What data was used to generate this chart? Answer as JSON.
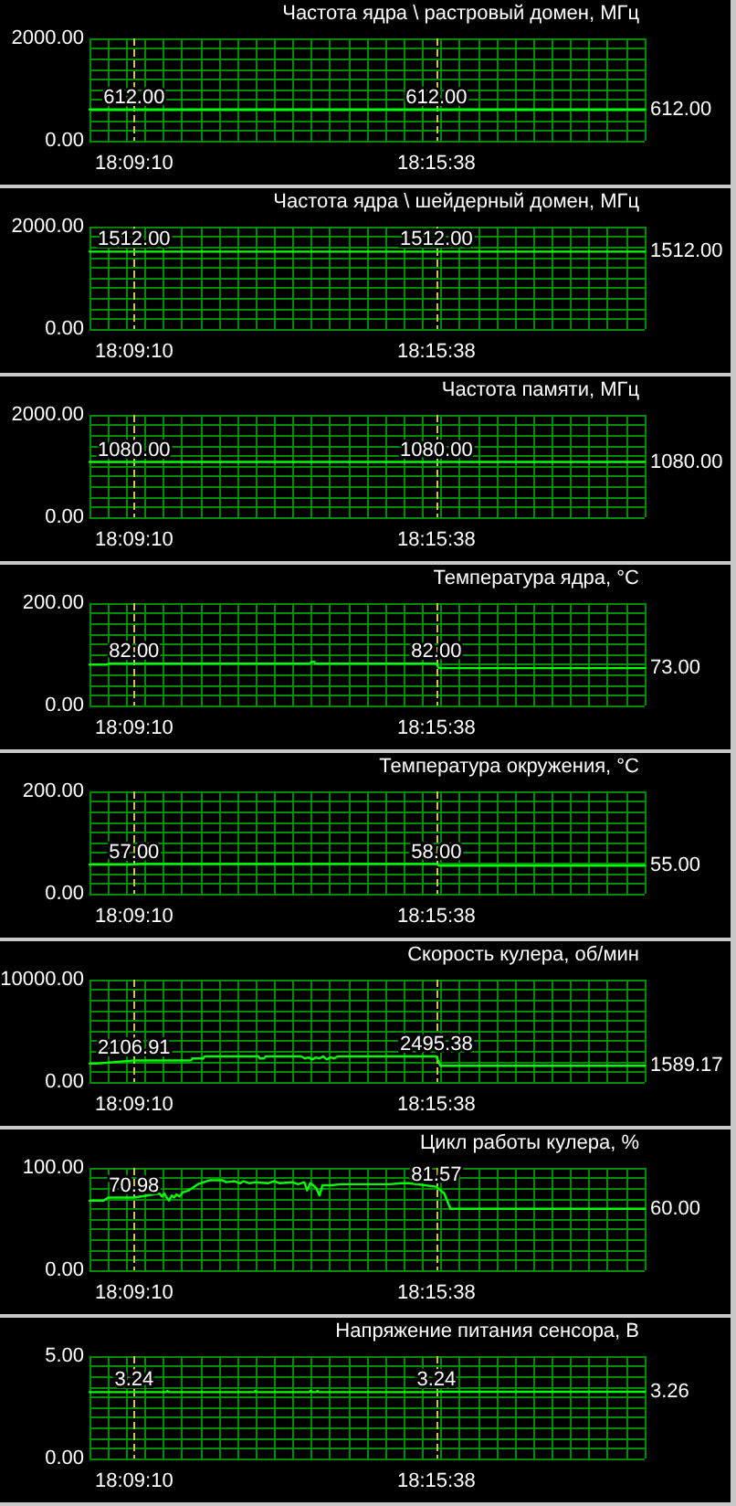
{
  "chart_data": [
    {
      "type": "line",
      "title": "Частота ядра \\ растровый домен, МГц",
      "x": [
        18.1369,
        18.1528,
        18.2606,
        18.3349
      ],
      "values": [
        612,
        612,
        612,
        612
      ],
      "value_labels": [
        null,
        "612.00",
        "612.00",
        "612.00"
      ],
      "color": "#00ff00",
      "marker": "none",
      "line_style": "solid",
      "grid": true,
      "xlim": [
        18.1369,
        18.3349
      ],
      "xticks": [
        {
          "value": 18.1369,
          "label": null
        },
        {
          "value": 18.1435,
          "label": null
        },
        {
          "value": 18.1501,
          "label": null
        },
        {
          "value": 18.1528,
          "label": "18:09:10"
        },
        {
          "value": 18.1567,
          "label": null
        },
        {
          "value": 18.1633,
          "label": null
        },
        {
          "value": 18.1699,
          "label": null
        },
        {
          "value": 18.1765,
          "label": null
        },
        {
          "value": 18.1831,
          "label": null
        },
        {
          "value": 18.1897,
          "label": null
        },
        {
          "value": 18.1963,
          "label": null
        },
        {
          "value": 18.2029,
          "label": null
        },
        {
          "value": 18.2095,
          "label": null
        },
        {
          "value": 18.2161,
          "label": null
        },
        {
          "value": 18.2227,
          "label": null
        },
        {
          "value": 18.2293,
          "label": null
        },
        {
          "value": 18.2359,
          "label": null
        },
        {
          "value": 18.2425,
          "label": null
        },
        {
          "value": 18.2491,
          "label": null
        },
        {
          "value": 18.2557,
          "label": null
        },
        {
          "value": 18.2606,
          "label": "18:15:38"
        },
        {
          "value": 18.2623,
          "label": null
        },
        {
          "value": 18.2689,
          "label": null
        },
        {
          "value": 18.2755,
          "label": null
        },
        {
          "value": 18.2821,
          "label": null
        },
        {
          "value": 18.2887,
          "label": null
        },
        {
          "value": 18.2953,
          "label": null
        },
        {
          "value": 18.3019,
          "label": null
        },
        {
          "value": 18.3085,
          "label": null
        },
        {
          "value": 18.3151,
          "label": null
        },
        {
          "value": 18.3217,
          "label": null
        },
        {
          "value": 18.3283,
          "label": null
        },
        {
          "value": 18.3349,
          "label": null
        }
      ],
      "ylim": [
        0,
        2000
      ],
      "yticks": [
        {
          "value": 0,
          "label": "0.00"
        },
        {
          "value": 200,
          "label": null
        },
        {
          "value": 400,
          "label": null
        },
        {
          "value": 600,
          "label": null
        },
        {
          "value": 800,
          "label": null
        },
        {
          "value": 1000,
          "label": null
        },
        {
          "value": 1200,
          "label": null
        },
        {
          "value": 1400,
          "label": null
        },
        {
          "value": 1600,
          "label": null
        },
        {
          "value": 1800,
          "label": null
        },
        {
          "value": 2000,
          "label": "2000.00"
        }
      ]
    },
    {
      "type": "line",
      "title": "Частота ядра \\ шейдерный домен, МГц",
      "x": [
        18.1369,
        18.1528,
        18.2606,
        18.3349
      ],
      "values": [
        1512,
        1512,
        1512,
        1512
      ],
      "value_labels": [
        null,
        "1512.00",
        "1512.00",
        "1512.00"
      ],
      "color": "#00ff00",
      "marker": "none",
      "line_style": "solid",
      "grid": true,
      "xlim": [
        18.1369,
        18.3349
      ],
      "xticks": [
        {
          "value": 18.1369,
          "label": null
        },
        {
          "value": 18.1435,
          "label": null
        },
        {
          "value": 18.1501,
          "label": null
        },
        {
          "value": 18.1528,
          "label": "18:09:10"
        },
        {
          "value": 18.1567,
          "label": null
        },
        {
          "value": 18.1633,
          "label": null
        },
        {
          "value": 18.1699,
          "label": null
        },
        {
          "value": 18.1765,
          "label": null
        },
        {
          "value": 18.1831,
          "label": null
        },
        {
          "value": 18.1897,
          "label": null
        },
        {
          "value": 18.1963,
          "label": null
        },
        {
          "value": 18.2029,
          "label": null
        },
        {
          "value": 18.2095,
          "label": null
        },
        {
          "value": 18.2161,
          "label": null
        },
        {
          "value": 18.2227,
          "label": null
        },
        {
          "value": 18.2293,
          "label": null
        },
        {
          "value": 18.2359,
          "label": null
        },
        {
          "value": 18.2425,
          "label": null
        },
        {
          "value": 18.2491,
          "label": null
        },
        {
          "value": 18.2557,
          "label": null
        },
        {
          "value": 18.2606,
          "label": "18:15:38"
        },
        {
          "value": 18.2623,
          "label": null
        },
        {
          "value": 18.2689,
          "label": null
        },
        {
          "value": 18.2755,
          "label": null
        },
        {
          "value": 18.2821,
          "label": null
        },
        {
          "value": 18.2887,
          "label": null
        },
        {
          "value": 18.2953,
          "label": null
        },
        {
          "value": 18.3019,
          "label": null
        },
        {
          "value": 18.3085,
          "label": null
        },
        {
          "value": 18.3151,
          "label": null
        },
        {
          "value": 18.3217,
          "label": null
        },
        {
          "value": 18.3283,
          "label": null
        },
        {
          "value": 18.3349,
          "label": null
        }
      ],
      "ylim": [
        0,
        2000
      ],
      "yticks": [
        {
          "value": 0,
          "label": "0.00"
        },
        {
          "value": 200,
          "label": null
        },
        {
          "value": 400,
          "label": null
        },
        {
          "value": 600,
          "label": null
        },
        {
          "value": 800,
          "label": null
        },
        {
          "value": 1000,
          "label": null
        },
        {
          "value": 1200,
          "label": null
        },
        {
          "value": 1400,
          "label": null
        },
        {
          "value": 1600,
          "label": null
        },
        {
          "value": 1800,
          "label": null
        },
        {
          "value": 2000,
          "label": "2000.00"
        }
      ]
    },
    {
      "type": "line",
      "title": "Частота памяти, МГц",
      "x": [
        18.1369,
        18.1528,
        18.2606,
        18.3349
      ],
      "values": [
        1080,
        1080,
        1080,
        1080
      ],
      "value_labels": [
        null,
        "1080.00",
        "1080.00",
        "1080.00"
      ],
      "color": "#00ff00",
      "marker": "none",
      "line_style": "solid",
      "grid": true,
      "xlim": [
        18.1369,
        18.3349
      ],
      "xticks": [
        {
          "value": 18.1369,
          "label": null
        },
        {
          "value": 18.1435,
          "label": null
        },
        {
          "value": 18.1501,
          "label": null
        },
        {
          "value": 18.1528,
          "label": "18:09:10"
        },
        {
          "value": 18.1567,
          "label": null
        },
        {
          "value": 18.1633,
          "label": null
        },
        {
          "value": 18.1699,
          "label": null
        },
        {
          "value": 18.1765,
          "label": null
        },
        {
          "value": 18.1831,
          "label": null
        },
        {
          "value": 18.1897,
          "label": null
        },
        {
          "value": 18.1963,
          "label": null
        },
        {
          "value": 18.2029,
          "label": null
        },
        {
          "value": 18.2095,
          "label": null
        },
        {
          "value": 18.2161,
          "label": null
        },
        {
          "value": 18.2227,
          "label": null
        },
        {
          "value": 18.2293,
          "label": null
        },
        {
          "value": 18.2359,
          "label": null
        },
        {
          "value": 18.2425,
          "label": null
        },
        {
          "value": 18.2491,
          "label": null
        },
        {
          "value": 18.2557,
          "label": null
        },
        {
          "value": 18.2606,
          "label": "18:15:38"
        },
        {
          "value": 18.2623,
          "label": null
        },
        {
          "value": 18.2689,
          "label": null
        },
        {
          "value": 18.2755,
          "label": null
        },
        {
          "value": 18.2821,
          "label": null
        },
        {
          "value": 18.2887,
          "label": null
        },
        {
          "value": 18.2953,
          "label": null
        },
        {
          "value": 18.3019,
          "label": null
        },
        {
          "value": 18.3085,
          "label": null
        },
        {
          "value": 18.3151,
          "label": null
        },
        {
          "value": 18.3217,
          "label": null
        },
        {
          "value": 18.3283,
          "label": null
        },
        {
          "value": 18.3349,
          "label": null
        }
      ],
      "ylim": [
        0,
        2000
      ],
      "yticks": [
        {
          "value": 0,
          "label": "0.00"
        },
        {
          "value": 200,
          "label": null
        },
        {
          "value": 400,
          "label": null
        },
        {
          "value": 600,
          "label": null
        },
        {
          "value": 800,
          "label": null
        },
        {
          "value": 1000,
          "label": null
        },
        {
          "value": 1200,
          "label": null
        },
        {
          "value": 1400,
          "label": null
        },
        {
          "value": 1600,
          "label": null
        },
        {
          "value": 1800,
          "label": null
        },
        {
          "value": 2000,
          "label": "2000.00"
        }
      ]
    },
    {
      "type": "line",
      "title": "Температура ядра, °C",
      "x": [
        18.1369,
        18.143,
        18.144,
        18.1528,
        18.2156,
        18.216,
        18.2171,
        18.2173,
        18.2606,
        18.2615,
        18.3349
      ],
      "values": [
        80,
        80,
        82,
        82,
        82,
        85,
        85,
        82,
        82,
        73,
        73
      ],
      "value_labels": [
        null,
        null,
        null,
        "82.00",
        null,
        null,
        null,
        null,
        "82.00",
        null,
        "73.00"
      ],
      "color": "#00ff00",
      "marker": "none",
      "line_style": "solid",
      "grid": true,
      "xlim": [
        18.1369,
        18.3349
      ],
      "xticks": [
        {
          "value": 18.1369,
          "label": null
        },
        {
          "value": 18.1435,
          "label": null
        },
        {
          "value": 18.1501,
          "label": null
        },
        {
          "value": 18.1528,
          "label": "18:09:10"
        },
        {
          "value": 18.1567,
          "label": null
        },
        {
          "value": 18.1633,
          "label": null
        },
        {
          "value": 18.1699,
          "label": null
        },
        {
          "value": 18.1765,
          "label": null
        },
        {
          "value": 18.1831,
          "label": null
        },
        {
          "value": 18.1897,
          "label": null
        },
        {
          "value": 18.1963,
          "label": null
        },
        {
          "value": 18.2029,
          "label": null
        },
        {
          "value": 18.2095,
          "label": null
        },
        {
          "value": 18.2161,
          "label": null
        },
        {
          "value": 18.2227,
          "label": null
        },
        {
          "value": 18.2293,
          "label": null
        },
        {
          "value": 18.2359,
          "label": null
        },
        {
          "value": 18.2425,
          "label": null
        },
        {
          "value": 18.2491,
          "label": null
        },
        {
          "value": 18.2557,
          "label": null
        },
        {
          "value": 18.2606,
          "label": "18:15:38"
        },
        {
          "value": 18.2623,
          "label": null
        },
        {
          "value": 18.2689,
          "label": null
        },
        {
          "value": 18.2755,
          "label": null
        },
        {
          "value": 18.2821,
          "label": null
        },
        {
          "value": 18.2887,
          "label": null
        },
        {
          "value": 18.2953,
          "label": null
        },
        {
          "value": 18.3019,
          "label": null
        },
        {
          "value": 18.3085,
          "label": null
        },
        {
          "value": 18.3151,
          "label": null
        },
        {
          "value": 18.3217,
          "label": null
        },
        {
          "value": 18.3283,
          "label": null
        },
        {
          "value": 18.3349,
          "label": null
        }
      ],
      "ylim": [
        0,
        200
      ],
      "yticks": [
        {
          "value": 0,
          "label": "0.00"
        },
        {
          "value": 20,
          "label": null
        },
        {
          "value": 40,
          "label": null
        },
        {
          "value": 60,
          "label": null
        },
        {
          "value": 80,
          "label": null
        },
        {
          "value": 100,
          "label": null
        },
        {
          "value": 120,
          "label": null
        },
        {
          "value": 140,
          "label": null
        },
        {
          "value": 160,
          "label": null
        },
        {
          "value": 180,
          "label": null
        },
        {
          "value": 200,
          "label": "200.00"
        }
      ]
    },
    {
      "type": "line",
      "title": "Температура окружения, °C",
      "x": [
        18.1369,
        18.1528,
        18.1545,
        18.2606,
        18.2615,
        18.3349
      ],
      "values": [
        57,
        57,
        58,
        58,
        55,
        55
      ],
      "value_labels": [
        null,
        "57.00",
        null,
        "58.00",
        null,
        "55.00"
      ],
      "color": "#00ff00",
      "marker": "none",
      "line_style": "solid",
      "grid": true,
      "xlim": [
        18.1369,
        18.3349
      ],
      "xticks": [
        {
          "value": 18.1369,
          "label": null
        },
        {
          "value": 18.1435,
          "label": null
        },
        {
          "value": 18.1501,
          "label": null
        },
        {
          "value": 18.1528,
          "label": "18:09:10"
        },
        {
          "value": 18.1567,
          "label": null
        },
        {
          "value": 18.1633,
          "label": null
        },
        {
          "value": 18.1699,
          "label": null
        },
        {
          "value": 18.1765,
          "label": null
        },
        {
          "value": 18.1831,
          "label": null
        },
        {
          "value": 18.1897,
          "label": null
        },
        {
          "value": 18.1963,
          "label": null
        },
        {
          "value": 18.2029,
          "label": null
        },
        {
          "value": 18.2095,
          "label": null
        },
        {
          "value": 18.2161,
          "label": null
        },
        {
          "value": 18.2227,
          "label": null
        },
        {
          "value": 18.2293,
          "label": null
        },
        {
          "value": 18.2359,
          "label": null
        },
        {
          "value": 18.2425,
          "label": null
        },
        {
          "value": 18.2491,
          "label": null
        },
        {
          "value": 18.2557,
          "label": null
        },
        {
          "value": 18.2606,
          "label": "18:15:38"
        },
        {
          "value": 18.2623,
          "label": null
        },
        {
          "value": 18.2689,
          "label": null
        },
        {
          "value": 18.2755,
          "label": null
        },
        {
          "value": 18.2821,
          "label": null
        },
        {
          "value": 18.2887,
          "label": null
        },
        {
          "value": 18.2953,
          "label": null
        },
        {
          "value": 18.3019,
          "label": null
        },
        {
          "value": 18.3085,
          "label": null
        },
        {
          "value": 18.3151,
          "label": null
        },
        {
          "value": 18.3217,
          "label": null
        },
        {
          "value": 18.3283,
          "label": null
        },
        {
          "value": 18.3349,
          "label": null
        }
      ],
      "ylim": [
        0,
        200
      ],
      "yticks": [
        {
          "value": 0,
          "label": "0.00"
        },
        {
          "value": 20,
          "label": null
        },
        {
          "value": 40,
          "label": null
        },
        {
          "value": 60,
          "label": null
        },
        {
          "value": 80,
          "label": null
        },
        {
          "value": 100,
          "label": null
        },
        {
          "value": 120,
          "label": null
        },
        {
          "value": 140,
          "label": null
        },
        {
          "value": 160,
          "label": null
        },
        {
          "value": 180,
          "label": null
        },
        {
          "value": 200,
          "label": "200.00"
        }
      ]
    },
    {
      "type": "line",
      "title": "Скорость кулера, об/мин",
      "x": [
        18.1369,
        18.1395,
        18.1528,
        18.1664,
        18.1731,
        18.1735,
        18.1775,
        18.1779,
        18.1972,
        18.1976,
        18.1992,
        18.1996,
        18.2124,
        18.2137,
        18.215,
        18.2163,
        18.2176,
        18.2189,
        18.2202,
        18.2215,
        18.2228,
        18.2241,
        18.2254,
        18.2449,
        18.2606,
        18.262,
        18.3349
      ],
      "values": [
        1800,
        1800,
        2106.91,
        2100,
        2100,
        2300,
        2300,
        2500,
        2500,
        2300,
        2300,
        2500,
        2500,
        2300,
        2400,
        2200,
        2400,
        2300,
        2500,
        2200,
        2400,
        2300,
        2500,
        2500,
        2495.38,
        1589.17,
        1589.17
      ],
      "value_labels": [
        null,
        null,
        "2106.91",
        null,
        null,
        null,
        null,
        null,
        null,
        null,
        null,
        null,
        null,
        null,
        null,
        null,
        null,
        null,
        null,
        null,
        null,
        null,
        null,
        null,
        "2495.38",
        null,
        "1589.17"
      ],
      "color": "#00ff00",
      "marker": "none",
      "line_style": "solid",
      "grid": true,
      "xlim": [
        18.1369,
        18.3349
      ],
      "xticks": [
        {
          "value": 18.1369,
          "label": null
        },
        {
          "value": 18.1435,
          "label": null
        },
        {
          "value": 18.1501,
          "label": null
        },
        {
          "value": 18.1528,
          "label": "18:09:10"
        },
        {
          "value": 18.1567,
          "label": null
        },
        {
          "value": 18.1633,
          "label": null
        },
        {
          "value": 18.1699,
          "label": null
        },
        {
          "value": 18.1765,
          "label": null
        },
        {
          "value": 18.1831,
          "label": null
        },
        {
          "value": 18.1897,
          "label": null
        },
        {
          "value": 18.1963,
          "label": null
        },
        {
          "value": 18.2029,
          "label": null
        },
        {
          "value": 18.2095,
          "label": null
        },
        {
          "value": 18.2161,
          "label": null
        },
        {
          "value": 18.2227,
          "label": null
        },
        {
          "value": 18.2293,
          "label": null
        },
        {
          "value": 18.2359,
          "label": null
        },
        {
          "value": 18.2425,
          "label": null
        },
        {
          "value": 18.2491,
          "label": null
        },
        {
          "value": 18.2557,
          "label": null
        },
        {
          "value": 18.2606,
          "label": "18:15:38"
        },
        {
          "value": 18.2623,
          "label": null
        },
        {
          "value": 18.2689,
          "label": null
        },
        {
          "value": 18.2755,
          "label": null
        },
        {
          "value": 18.2821,
          "label": null
        },
        {
          "value": 18.2887,
          "label": null
        },
        {
          "value": 18.2953,
          "label": null
        },
        {
          "value": 18.3019,
          "label": null
        },
        {
          "value": 18.3085,
          "label": null
        },
        {
          "value": 18.3151,
          "label": null
        },
        {
          "value": 18.3217,
          "label": null
        },
        {
          "value": 18.3283,
          "label": null
        },
        {
          "value": 18.3349,
          "label": null
        }
      ],
      "ylim": [
        0,
        10000
      ],
      "yticks": [
        {
          "value": 0,
          "label": "0.00"
        },
        {
          "value": 1000,
          "label": null
        },
        {
          "value": 2000,
          "label": null
        },
        {
          "value": 3000,
          "label": null
        },
        {
          "value": 4000,
          "label": null
        },
        {
          "value": 5000,
          "label": null
        },
        {
          "value": 6000,
          "label": null
        },
        {
          "value": 7000,
          "label": null
        },
        {
          "value": 8000,
          "label": null
        },
        {
          "value": 9000,
          "label": null
        },
        {
          "value": 10000,
          "label": "10000.00"
        }
      ]
    },
    {
      "type": "line",
      "title": "Цикл работы кулера, %",
      "x": [
        18.1369,
        18.1419,
        18.1436,
        18.1528,
        18.1618,
        18.1627,
        18.1636,
        18.1644,
        18.1653,
        18.1662,
        18.167,
        18.1679,
        18.169,
        18.1701,
        18.1722,
        18.1744,
        18.1755,
        18.1777,
        18.1799,
        18.1842,
        18.1857,
        18.1885,
        18.1907,
        18.1918,
        18.194,
        18.1961,
        18.2005,
        18.2027,
        18.2048,
        18.2092,
        18.2113,
        18.2135,
        18.2145,
        18.2156,
        18.2167,
        18.2178,
        18.2189,
        18.22,
        18.2232,
        18.2265,
        18.2352,
        18.2439,
        18.2482,
        18.2508,
        18.2606,
        18.2634,
        18.2656,
        18.3349
      ],
      "values": [
        68,
        68,
        71,
        70.98,
        75,
        72,
        75,
        71,
        68,
        73,
        71,
        74,
        72,
        76,
        78,
        82,
        84,
        86,
        88,
        88,
        86,
        87,
        85,
        87,
        85,
        86,
        85,
        87,
        85,
        86,
        84,
        86,
        78,
        85,
        83,
        80,
        73,
        83,
        83,
        84,
        84,
        84,
        85,
        85,
        81.57,
        75,
        60,
        60
      ],
      "value_labels": [
        null,
        null,
        null,
        "70.98",
        null,
        null,
        null,
        null,
        null,
        null,
        null,
        null,
        null,
        null,
        null,
        null,
        null,
        null,
        null,
        null,
        null,
        null,
        null,
        null,
        null,
        null,
        null,
        null,
        null,
        null,
        null,
        null,
        null,
        null,
        null,
        null,
        null,
        null,
        null,
        null,
        null,
        null,
        null,
        null,
        "81.57",
        null,
        null,
        "60.00"
      ],
      "color": "#00ff00",
      "marker": "none",
      "line_style": "solid",
      "grid": true,
      "xlim": [
        18.1369,
        18.3349
      ],
      "xticks": [
        {
          "value": 18.1369,
          "label": null
        },
        {
          "value": 18.1435,
          "label": null
        },
        {
          "value": 18.1501,
          "label": null
        },
        {
          "value": 18.1528,
          "label": "18:09:10"
        },
        {
          "value": 18.1567,
          "label": null
        },
        {
          "value": 18.1633,
          "label": null
        },
        {
          "value": 18.1699,
          "label": null
        },
        {
          "value": 18.1765,
          "label": null
        },
        {
          "value": 18.1831,
          "label": null
        },
        {
          "value": 18.1897,
          "label": null
        },
        {
          "value": 18.1963,
          "label": null
        },
        {
          "value": 18.2029,
          "label": null
        },
        {
          "value": 18.2095,
          "label": null
        },
        {
          "value": 18.2161,
          "label": null
        },
        {
          "value": 18.2227,
          "label": null
        },
        {
          "value": 18.2293,
          "label": null
        },
        {
          "value": 18.2359,
          "label": null
        },
        {
          "value": 18.2425,
          "label": null
        },
        {
          "value": 18.2491,
          "label": null
        },
        {
          "value": 18.2557,
          "label": null
        },
        {
          "value": 18.2606,
          "label": "18:15:38"
        },
        {
          "value": 18.2623,
          "label": null
        },
        {
          "value": 18.2689,
          "label": null
        },
        {
          "value": 18.2755,
          "label": null
        },
        {
          "value": 18.2821,
          "label": null
        },
        {
          "value": 18.2887,
          "label": null
        },
        {
          "value": 18.2953,
          "label": null
        },
        {
          "value": 18.3019,
          "label": null
        },
        {
          "value": 18.3085,
          "label": null
        },
        {
          "value": 18.3151,
          "label": null
        },
        {
          "value": 18.3217,
          "label": null
        },
        {
          "value": 18.3283,
          "label": null
        },
        {
          "value": 18.3349,
          "label": null
        }
      ],
      "ylim": [
        0,
        100
      ],
      "yticks": [
        {
          "value": 0,
          "label": "0.00"
        },
        {
          "value": 10,
          "label": null
        },
        {
          "value": 20,
          "label": null
        },
        {
          "value": 30,
          "label": null
        },
        {
          "value": 40,
          "label": null
        },
        {
          "value": 50,
          "label": null
        },
        {
          "value": 60,
          "label": null
        },
        {
          "value": 70,
          "label": null
        },
        {
          "value": 80,
          "label": null
        },
        {
          "value": 90,
          "label": null
        },
        {
          "value": 100,
          "label": "100.00"
        }
      ]
    },
    {
      "type": "line",
      "title": "Напряжение питания сенсора, В",
      "x": [
        18.1369,
        18.1528,
        18.1643,
        18.1647,
        18.1652,
        18.1957,
        18.1961,
        18.1966,
        18.2152,
        18.2158,
        18.2165,
        18.2178,
        18.2182,
        18.2187,
        18.2606,
        18.2615,
        18.3349
      ],
      "values": [
        3.24,
        3.24,
        3.24,
        3.3,
        3.24,
        3.24,
        3.3,
        3.24,
        3.24,
        3.3,
        3.24,
        3.24,
        3.3,
        3.24,
        3.24,
        3.26,
        3.26
      ],
      "value_labels": [
        null,
        "3.24",
        null,
        null,
        null,
        null,
        null,
        null,
        null,
        null,
        null,
        null,
        null,
        null,
        "3.24",
        null,
        "3.26"
      ],
      "color": "#00ff00",
      "marker": "none",
      "line_style": "solid",
      "grid": true,
      "xlim": [
        18.1369,
        18.3349
      ],
      "xticks": [
        {
          "value": 18.1369,
          "label": null
        },
        {
          "value": 18.1435,
          "label": null
        },
        {
          "value": 18.1501,
          "label": null
        },
        {
          "value": 18.1528,
          "label": "18:09:10"
        },
        {
          "value": 18.1567,
          "label": null
        },
        {
          "value": 18.1633,
          "label": null
        },
        {
          "value": 18.1699,
          "label": null
        },
        {
          "value": 18.1765,
          "label": null
        },
        {
          "value": 18.1831,
          "label": null
        },
        {
          "value": 18.1897,
          "label": null
        },
        {
          "value": 18.1963,
          "label": null
        },
        {
          "value": 18.2029,
          "label": null
        },
        {
          "value": 18.2095,
          "label": null
        },
        {
          "value": 18.2161,
          "label": null
        },
        {
          "value": 18.2227,
          "label": null
        },
        {
          "value": 18.2293,
          "label": null
        },
        {
          "value": 18.2359,
          "label": null
        },
        {
          "value": 18.2425,
          "label": null
        },
        {
          "value": 18.2491,
          "label": null
        },
        {
          "value": 18.2557,
          "label": null
        },
        {
          "value": 18.2606,
          "label": "18:15:38"
        },
        {
          "value": 18.2623,
          "label": null
        },
        {
          "value": 18.2689,
          "label": null
        },
        {
          "value": 18.2755,
          "label": null
        },
        {
          "value": 18.2821,
          "label": null
        },
        {
          "value": 18.2887,
          "label": null
        },
        {
          "value": 18.2953,
          "label": null
        },
        {
          "value": 18.3019,
          "label": null
        },
        {
          "value": 18.3085,
          "label": null
        },
        {
          "value": 18.3151,
          "label": null
        },
        {
          "value": 18.3217,
          "label": null
        },
        {
          "value": 18.3283,
          "label": null
        },
        {
          "value": 18.3349,
          "label": null
        }
      ],
      "ylim": [
        0,
        5
      ],
      "yticks": [
        {
          "value": 0,
          "label": "0.00"
        },
        {
          "value": 0.5,
          "label": null
        },
        {
          "value": 1,
          "label": null
        },
        {
          "value": 1.5,
          "label": null
        },
        {
          "value": 2,
          "label": null
        },
        {
          "value": 2.5,
          "label": null
        },
        {
          "value": 3,
          "label": null
        },
        {
          "value": 3.5,
          "label": null
        },
        {
          "value": 4,
          "label": null
        },
        {
          "value": 4.5,
          "label": null
        },
        {
          "value": 5,
          "label": "5.00"
        }
      ]
    }
  ]
}
